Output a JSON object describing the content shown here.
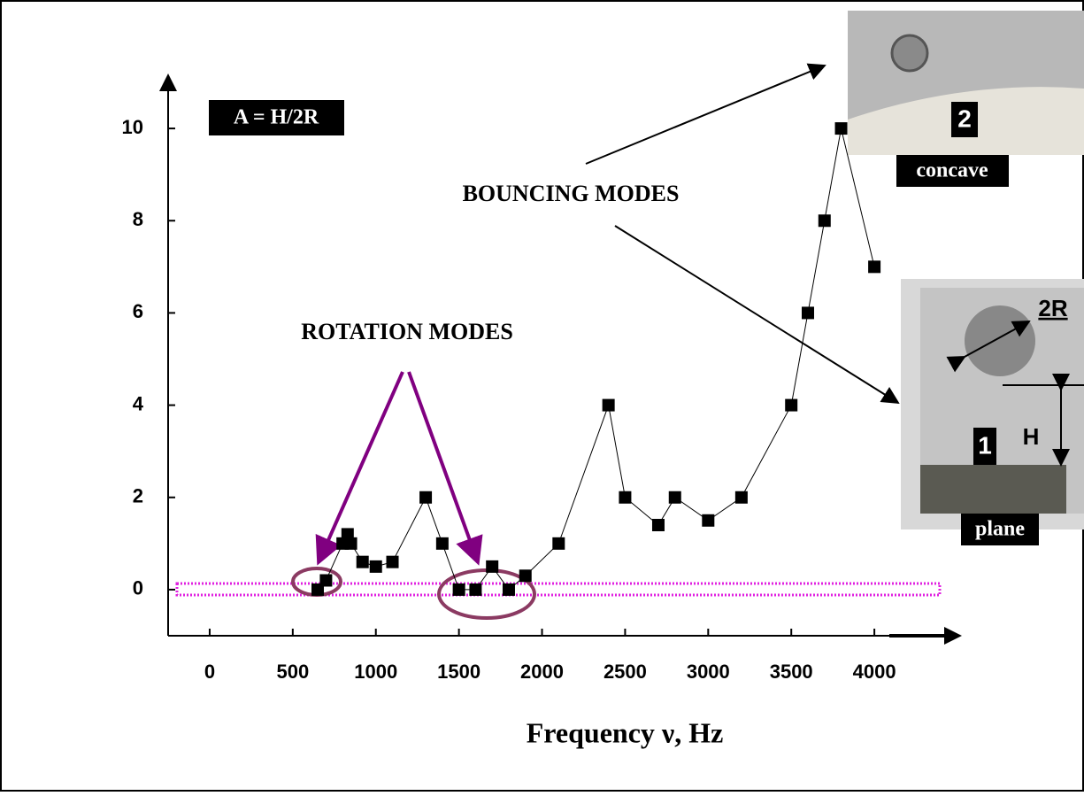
{
  "chart_data": {
    "type": "line",
    "xlabel": "Frequency ν, Hz",
    "formula": "A = H/2R",
    "annotations": {
      "bouncing": "BOUNCING MODES",
      "rotation": "ROTATION MODES"
    },
    "photos": {
      "concave": {
        "number": "2",
        "caption": "concave"
      },
      "plane": {
        "number": "1",
        "caption": "plane",
        "diameter": "2R",
        "height": "H"
      }
    },
    "x": [
      650,
      700,
      800,
      830,
      850,
      920,
      1000,
      1100,
      1300,
      1400,
      1500,
      1600,
      1700,
      1800,
      1900,
      2100,
      2400,
      2500,
      2700,
      2800,
      3000,
      3200,
      3500,
      3600,
      3700,
      3800,
      4000
    ],
    "values": [
      0,
      0.2,
      1,
      1.2,
      1,
      0.6,
      0.5,
      0.6,
      2,
      1,
      0,
      0,
      0.5,
      0,
      0.3,
      1,
      4,
      2,
      1.4,
      2,
      1.5,
      2,
      4,
      6,
      8,
      10,
      7
    ],
    "color": "#000000",
    "xlim": [
      -250,
      4500
    ],
    "xticks": [
      0,
      500,
      1000,
      1500,
      2000,
      2500,
      3000,
      3500,
      4000
    ],
    "ylim": [
      -1,
      11
    ],
    "yticks": [
      0,
      2,
      4,
      6,
      8,
      10
    ]
  }
}
